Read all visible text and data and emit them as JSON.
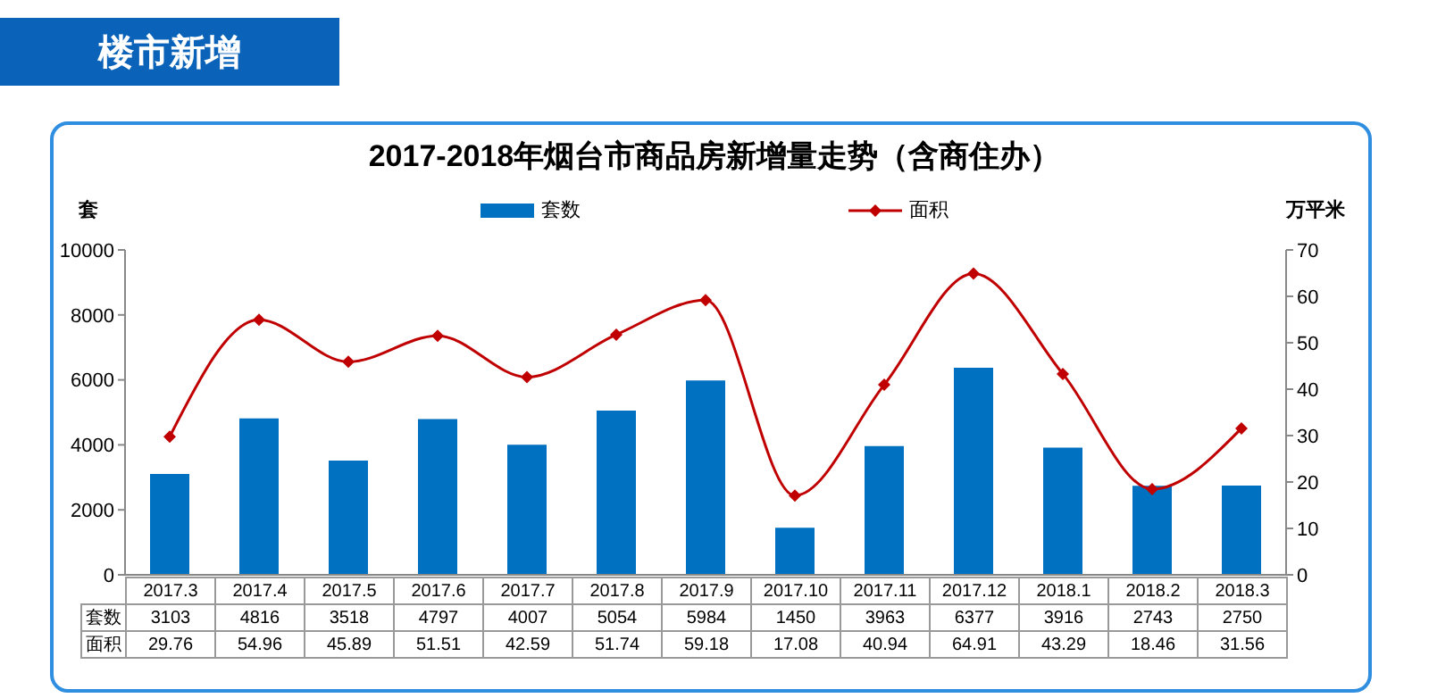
{
  "chart_data": {
    "type": "bar",
    "subtitle": "楼市新增",
    "title": "2017-2018年烟台市商品房新增量走势（含商住办）",
    "ylabel": "套",
    "y2label": "万平米",
    "categories": [
      "2017.3",
      "2017.4",
      "2017.5",
      "2017.6",
      "2017.7",
      "2017.8",
      "2017.9",
      "2017.10",
      "2017.11",
      "2017.12",
      "2018.1",
      "2018.2",
      "2018.3"
    ],
    "series": [
      {
        "name": "套数",
        "color": "#0070c0",
        "values": [
          3103,
          4816,
          3518,
          4797,
          4007,
          5054,
          5984,
          1450,
          3963,
          6377,
          3916,
          2743,
          2750
        ]
      },
      {
        "name": "面积",
        "type": "line",
        "axis": "y2",
        "color": "#c00000",
        "marker": "diamond",
        "values": [
          29.76,
          54.96,
          45.89,
          51.51,
          42.59,
          51.74,
          59.18,
          17.08,
          40.94,
          64.91,
          43.29,
          18.46,
          31.56
        ]
      }
    ],
    "ylim": [
      0,
      10000
    ],
    "yticks": [
      0,
      2000,
      4000,
      6000,
      8000,
      10000
    ],
    "y2lim": [
      0,
      70
    ],
    "y2ticks": [
      0,
      10,
      20,
      30,
      40,
      50,
      60,
      70
    ],
    "legend": "top",
    "data_labels": true
  }
}
